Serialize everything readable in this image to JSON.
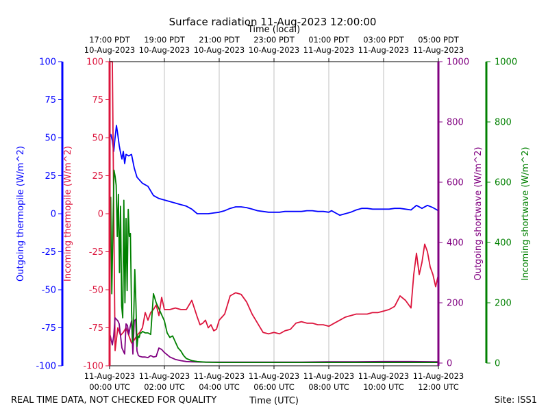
{
  "chart_data": {
    "type": "line",
    "title": "Surface radiation 11-Aug-2023 12:00:00",
    "top_axis_label": "Time (local)",
    "bottom_axis_label": "Time (UTC)",
    "footer_left": "REAL TIME DATA, NOT CHECKED FOR QUALITY",
    "footer_right": "Site: ISS1",
    "x_range_hours": [
      0,
      12
    ],
    "x_ticks_utc": [
      {
        "h": 0,
        "line1": "11-Aug-2023",
        "line2": "00:00 UTC"
      },
      {
        "h": 2,
        "line1": "11-Aug-2023",
        "line2": "02:00 UTC"
      },
      {
        "h": 4,
        "line1": "11-Aug-2023",
        "line2": "04:00 UTC"
      },
      {
        "h": 6,
        "line1": "11-Aug-2023",
        "line2": "06:00 UTC"
      },
      {
        "h": 8,
        "line1": "11-Aug-2023",
        "line2": "08:00 UTC"
      },
      {
        "h": 10,
        "line1": "11-Aug-2023",
        "line2": "10:00 UTC"
      },
      {
        "h": 12,
        "line1": "11-Aug-2023",
        "line2": "12:00 UTC"
      }
    ],
    "x_ticks_local": [
      {
        "h": 0,
        "line1": "17:00 PDT",
        "line2": "10-Aug-2023"
      },
      {
        "h": 2,
        "line1": "19:00 PDT",
        "line2": "10-Aug-2023"
      },
      {
        "h": 4,
        "line1": "21:00 PDT",
        "line2": "10-Aug-2023"
      },
      {
        "h": 6,
        "line1": "23:00 PDT",
        "line2": "10-Aug-2023"
      },
      {
        "h": 8,
        "line1": "01:00 PDT",
        "line2": "11-Aug-2023"
      },
      {
        "h": 10,
        "line1": "03:00 PDT",
        "line2": "11-Aug-2023"
      },
      {
        "h": 12,
        "line1": "05:00 PDT",
        "line2": "11-Aug-2023"
      }
    ],
    "axes": {
      "outgoing_thermopile": {
        "label": "Outgoing thermopile (W/m^2)",
        "color": "#0000ff",
        "ylim": [
          -100,
          100
        ],
        "ticks": [
          100,
          75,
          50,
          25,
          0,
          -25,
          -50,
          -75,
          -100
        ]
      },
      "incoming_thermopile": {
        "label": "Incoming thermopile (W/m^2)",
        "color": "#dc143c",
        "ylim": [
          -100,
          100
        ],
        "ticks": [
          100,
          75,
          50,
          25,
          0,
          -25,
          -50,
          -75,
          -100
        ]
      },
      "outgoing_shortwave": {
        "label": "Outgoing shortwave (W/m^2)",
        "color": "#800080",
        "ylim": [
          0,
          1000
        ],
        "ticks": [
          0,
          200,
          400,
          600,
          800,
          1000
        ]
      },
      "incoming_shortwave": {
        "label": "Incoming shortwave (W/m^2)",
        "color": "#008000",
        "ylim": [
          0,
          1000
        ],
        "ticks": [
          0,
          200,
          400,
          600,
          800,
          1000
        ]
      }
    },
    "series": [
      {
        "name": "Outgoing thermopile",
        "axis": "outgoing_thermopile",
        "color": "#0000ff",
        "x": [
          0,
          0.05,
          0.1,
          0.15,
          0.2,
          0.25,
          0.3,
          0.35,
          0.4,
          0.45,
          0.5,
          0.55,
          0.6,
          0.7,
          0.8,
          0.9,
          1.0,
          1.1,
          1.2,
          1.4,
          1.6,
          1.8,
          2.0,
          2.2,
          2.4,
          2.6,
          2.8,
          3.0,
          3.2,
          3.4,
          3.6,
          3.8,
          4.0,
          4.2,
          4.4,
          4.6,
          4.8,
          5.0,
          5.2,
          5.4,
          5.6,
          5.8,
          6.0,
          6.2,
          6.4,
          6.6,
          6.8,
          7.0,
          7.2,
          7.4,
          7.6,
          7.8,
          8.0,
          8.1,
          8.2,
          8.3,
          8.4,
          8.6,
          8.8,
          9.0,
          9.2,
          9.4,
          9.6,
          9.8,
          10.0,
          10.2,
          10.4,
          10.6,
          10.8,
          11.0,
          11.2,
          11.4,
          11.6,
          11.8,
          12.0
        ],
        "values": [
          50,
          52,
          48,
          41,
          50,
          58,
          52,
          45,
          40,
          36,
          41,
          33,
          39,
          38,
          39,
          30,
          24,
          22,
          20,
          18,
          12,
          10,
          9,
          8,
          7,
          6,
          5,
          3,
          0,
          0,
          0,
          0.5,
          1,
          2,
          3.5,
          4.5,
          4.5,
          4,
          3,
          2,
          1.5,
          1,
          1,
          1,
          1.5,
          1.5,
          1.5,
          1.5,
          2,
          2,
          1.5,
          1.5,
          1,
          2,
          1,
          0,
          -1,
          0,
          1,
          2.5,
          3.5,
          3.5,
          3,
          3,
          3,
          3,
          3.5,
          3.5,
          3,
          2.5,
          5.5,
          3.5,
          5.5,
          4,
          2
        ]
      },
      {
        "name": "Incoming thermopile",
        "axis": "incoming_thermopile",
        "color": "#dc143c",
        "x": [
          0,
          0.1,
          0.2,
          0.3,
          0.4,
          0.5,
          0.6,
          0.7,
          0.8,
          0.9,
          1.0,
          1.1,
          1.2,
          1.3,
          1.4,
          1.5,
          1.6,
          1.7,
          1.8,
          1.9,
          2.0,
          2.2,
          2.4,
          2.6,
          2.8,
          3.0,
          3.2,
          3.3,
          3.4,
          3.5,
          3.6,
          3.7,
          3.8,
          3.9,
          4.0,
          4.2,
          4.4,
          4.6,
          4.8,
          5.0,
          5.2,
          5.4,
          5.6,
          5.8,
          6.0,
          6.2,
          6.4,
          6.6,
          6.8,
          7.0,
          7.2,
          7.4,
          7.6,
          7.8,
          8.0,
          8.2,
          8.4,
          8.6,
          8.8,
          9.0,
          9.2,
          9.4,
          9.6,
          9.8,
          10.0,
          10.2,
          10.4,
          10.6,
          10.8,
          11.0,
          11.1,
          11.2,
          11.3,
          11.4,
          11.5,
          11.6,
          11.7,
          11.8,
          11.9,
          12.0
        ],
        "values": [
          100,
          100,
          -90,
          -75,
          -80,
          -78,
          -75,
          -80,
          -85,
          -83,
          -80,
          -78,
          -75,
          -65,
          -70,
          -65,
          -63,
          -60,
          -67,
          -55,
          -63,
          -63,
          -62,
          -63,
          -63,
          -57,
          -68,
          -73,
          -72,
          -70,
          -75,
          -73,
          -77,
          -76,
          -70,
          -66,
          -54,
          -52,
          -53,
          -58,
          -66,
          -72,
          -78,
          -79,
          -78,
          -79,
          -77,
          -76,
          -72,
          -71,
          -72,
          -72,
          -73,
          -73,
          -74,
          -72,
          -70,
          -68,
          -67,
          -66,
          -66,
          -66,
          -65,
          -65,
          -64,
          -63,
          -61,
          -54,
          -57,
          -62,
          -40,
          -26,
          -40,
          -32,
          -20,
          -25,
          -35,
          -40,
          -48,
          -40
        ]
      },
      {
        "name": "Outgoing shortwave",
        "axis": "outgoing_shortwave",
        "color": "#800080",
        "x": [
          0,
          0.05,
          0.1,
          0.15,
          0.2,
          0.25,
          0.3,
          0.35,
          0.4,
          0.45,
          0.5,
          0.55,
          0.6,
          0.65,
          0.7,
          0.75,
          0.8,
          0.85,
          0.9,
          0.95,
          1.0,
          1.05,
          1.1,
          1.2,
          1.3,
          1.4,
          1.5,
          1.6,
          1.7,
          1.8,
          1.9,
          2.0,
          2.2,
          2.4,
          2.6,
          2.8,
          3.0,
          3.5,
          4.0,
          5.0,
          6.0,
          7.0,
          8.0,
          9.0,
          10.0,
          11.0,
          12.0
        ],
        "values": [
          100,
          80,
          60,
          90,
          150,
          145,
          140,
          130,
          90,
          50,
          40,
          30,
          130,
          125,
          95,
          120,
          140,
          30,
          140,
          145,
          40,
          25,
          22,
          20,
          20,
          18,
          25,
          20,
          22,
          50,
          45,
          35,
          20,
          12,
          8,
          5,
          4,
          3,
          3,
          3,
          3,
          3,
          4,
          4,
          5,
          5,
          4
        ]
      },
      {
        "name": "Incoming shortwave",
        "axis": "incoming_shortwave",
        "color": "#008000",
        "x": [
          0,
          0.04,
          0.08,
          0.12,
          0.16,
          0.2,
          0.24,
          0.28,
          0.32,
          0.36,
          0.4,
          0.44,
          0.48,
          0.52,
          0.56,
          0.6,
          0.64,
          0.68,
          0.72,
          0.76,
          0.8,
          0.84,
          0.88,
          0.92,
          0.96,
          1.0,
          1.04,
          1.08,
          1.12,
          1.16,
          1.2,
          1.3,
          1.4,
          1.5,
          1.6,
          1.7,
          1.8,
          1.9,
          2.0,
          2.1,
          2.2,
          2.3,
          2.4,
          2.5,
          2.6,
          2.7,
          2.8,
          3.0,
          3.2,
          3.5,
          4.0,
          5.0,
          6.0,
          7.0,
          8.0,
          9.0,
          10.0,
          11.0,
          12.0
        ],
        "values": [
          460,
          550,
          230,
          440,
          640,
          620,
          590,
          420,
          560,
          300,
          520,
          190,
          150,
          540,
          200,
          480,
          240,
          510,
          420,
          430,
          180,
          70,
          150,
          310,
          200,
          55,
          90,
          85,
          100,
          100,
          105,
          100,
          100,
          95,
          230,
          200,
          180,
          160,
          140,
          100,
          85,
          90,
          70,
          50,
          40,
          25,
          15,
          8,
          5,
          3,
          2,
          2,
          2,
          2,
          2,
          2,
          2,
          2,
          2
        ]
      }
    ]
  }
}
